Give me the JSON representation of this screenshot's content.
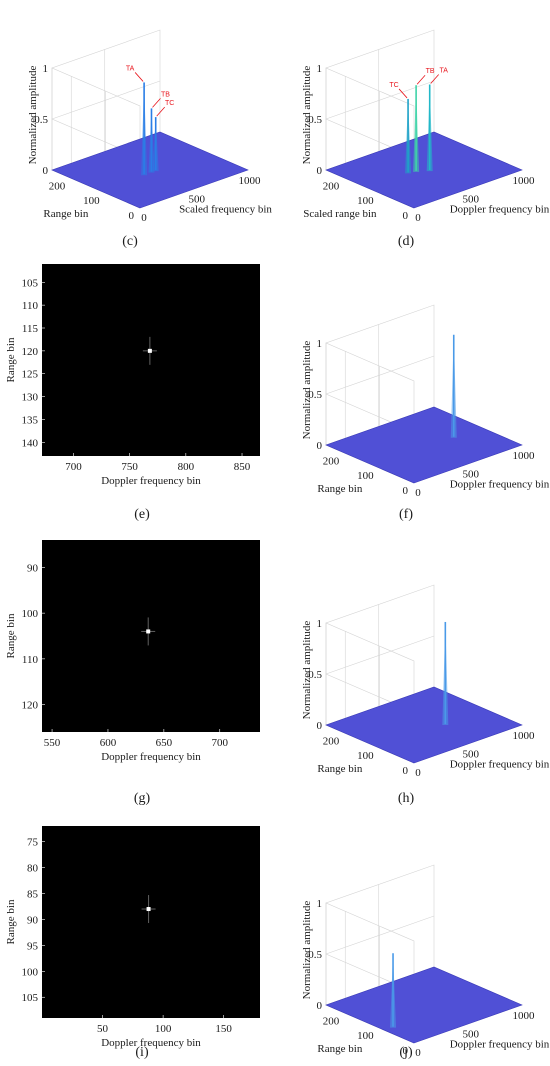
{
  "chart_data": [
    {
      "id": "c",
      "type": "surface3d",
      "panel_label": "(c)",
      "zlabel": "Normalized amplitude",
      "xlabel": "Scaled frequency bin",
      "ylabel": "Range  bin",
      "xlim": [
        0,
        1024
      ],
      "ylim": [
        0,
        256
      ],
      "zlim": [
        0,
        1
      ],
      "x_ticks": [
        "0",
        "500",
        "1000"
      ],
      "y_ticks": [
        "0",
        "100",
        "200"
      ],
      "z_ticks": [
        "0",
        "0.5",
        "1"
      ],
      "floor_color": "#5050d6",
      "peaks": [
        {
          "label": "TA",
          "x": 430,
          "y": 120,
          "amplitude": 0.9,
          "color": "#2a7ee6"
        },
        {
          "label": "TB",
          "x": 500,
          "y": 120,
          "amplitude": 0.62,
          "color": "#2a7ee6"
        },
        {
          "label": "TC",
          "x": 540,
          "y": 120,
          "amplitude": 0.52,
          "color": "#2a7ee6"
        }
      ]
    },
    {
      "id": "d",
      "type": "surface3d",
      "panel_label": "(d)",
      "zlabel": "Normalized amplitude",
      "xlabel": "Doppler frequency bin",
      "ylabel": "Scaled range bin",
      "xlim": [
        0,
        1024
      ],
      "ylim": [
        0,
        256
      ],
      "zlim": [
        0,
        1
      ],
      "x_ticks": [
        "0",
        "500",
        "1000"
      ],
      "y_ticks": [
        "0",
        "100",
        "200"
      ],
      "z_ticks": [
        "0",
        "0.5",
        "1"
      ],
      "floor_color": "#5050d6",
      "peaks": [
        {
          "label": "TC",
          "x": 400,
          "y": 140,
          "amplitude": 0.72,
          "color": "#1fa3c8"
        },
        {
          "label": "TB",
          "x": 460,
          "y": 135,
          "amplitude": 0.84,
          "color": "#3fd3a8"
        },
        {
          "label": "TA",
          "x": 540,
          "y": 120,
          "amplitude": 0.84,
          "color": "#22b8c8"
        }
      ]
    },
    {
      "id": "e",
      "type": "heatmap",
      "panel_label": "(e)",
      "xlabel": "Doppler frequency bin",
      "ylabel": "Range bin",
      "xlim": [
        672,
        866
      ],
      "ylim": [
        143,
        101
      ],
      "x_ticks": [
        700,
        750,
        800,
        850
      ],
      "y_ticks": [
        105,
        110,
        115,
        120,
        125,
        130,
        135,
        140
      ],
      "peak": {
        "x": 768,
        "y": 120
      }
    },
    {
      "id": "f",
      "type": "surface3d",
      "panel_label": "(f)",
      "zlabel": "Normalized amplitude",
      "xlabel": "Doppler frequency bin",
      "ylabel": "Range bin",
      "xlim": [
        0,
        1024
      ],
      "ylim": [
        0,
        256
      ],
      "zlim": [
        0,
        1
      ],
      "x_ticks": [
        "0",
        "500",
        "1000"
      ],
      "y_ticks": [
        "0",
        "100",
        "200"
      ],
      "z_ticks": [
        "0",
        "0.5",
        "1"
      ],
      "floor_color": "#5050d6",
      "peaks": [
        {
          "label": "",
          "x": 768,
          "y": 120,
          "amplitude": 1.0,
          "color": "#4a9ae8"
        }
      ]
    },
    {
      "id": "g",
      "type": "heatmap",
      "panel_label": "(g)",
      "xlabel": "Doppler frequency bin",
      "ylabel": "Range bin",
      "xlim": [
        541,
        736
      ],
      "ylim": [
        126,
        84
      ],
      "x_ticks": [
        550,
        600,
        650,
        700
      ],
      "y_ticks": [
        90,
        100,
        110,
        120
      ],
      "peak": {
        "x": 636,
        "y": 104
      }
    },
    {
      "id": "h",
      "type": "surface3d",
      "panel_label": "(h)",
      "zlabel": "Normalized amplitude",
      "xlabel": "Doppler frequency bin",
      "ylabel": "Range bin",
      "xlim": [
        0,
        1024
      ],
      "ylim": [
        0,
        256
      ],
      "zlim": [
        0,
        1
      ],
      "x_ticks": [
        "0",
        "500",
        "1000"
      ],
      "y_ticks": [
        "0",
        "100",
        "200"
      ],
      "z_ticks": [
        "0",
        "0.5",
        "1"
      ],
      "floor_color": "#5050d6",
      "peaks": [
        {
          "label": "",
          "x": 636,
          "y": 104,
          "amplitude": 1.0,
          "color": "#4a9ae8"
        }
      ]
    },
    {
      "id": "i",
      "type": "heatmap",
      "panel_label": "(i)",
      "xlabel": "Doppler frequency bin",
      "ylabel": "Range bin",
      "xlim": [
        0,
        180
      ],
      "ylim": [
        109,
        72
      ],
      "x_ticks": [
        50,
        100,
        150
      ],
      "y_ticks": [
        75,
        80,
        85,
        90,
        95,
        100,
        105
      ],
      "peak": {
        "x": 88,
        "y": 88
      }
    },
    {
      "id": "j",
      "type": "surface3d",
      "panel_label": "(j)",
      "zlabel": "Normalized amplitude",
      "xlabel": "Doppler frequency bin",
      "ylabel": "Range bin",
      "xlim": [
        0,
        1024
      ],
      "ylim": [
        0,
        256
      ],
      "zlim": [
        0,
        1
      ],
      "x_ticks": [
        "0",
        "500",
        "1000"
      ],
      "y_ticks": [
        "0",
        "100",
        "200"
      ],
      "z_ticks": [
        "0",
        "0.5",
        "1"
      ],
      "floor_color": "#5050d6",
      "peaks": [
        {
          "label": "",
          "x": 88,
          "y": 88,
          "amplitude": 0.72,
          "color": "#4a9ae8"
        }
      ]
    }
  ]
}
